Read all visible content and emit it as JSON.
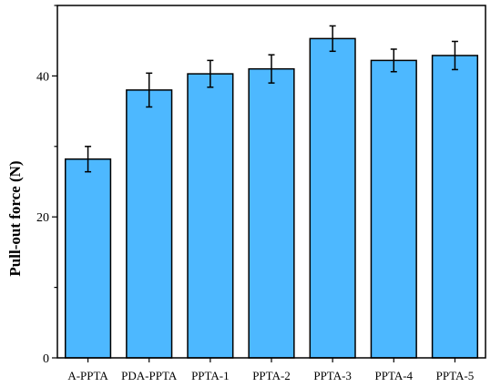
{
  "chart_data": {
    "type": "bar",
    "title": "",
    "xlabel": "",
    "ylabel": "Pull-out force (N)",
    "categories": [
      "A-PPTA",
      "PDA-PPTA",
      "PPTA-1",
      "PPTA-2",
      "PPTA-3",
      "PPTA-4",
      "PPTA-5"
    ],
    "values": [
      28.2,
      38.0,
      40.3,
      41.0,
      45.3,
      42.2,
      42.9
    ],
    "errors": [
      1.8,
      2.4,
      1.9,
      2.0,
      1.8,
      1.6,
      2.0
    ],
    "ylim": [
      0,
      50
    ],
    "yticks_major": [
      0,
      20,
      40
    ],
    "yticks_minor": [
      10,
      30,
      50
    ],
    "bar_color": "#4db8ff",
    "grid": false
  }
}
